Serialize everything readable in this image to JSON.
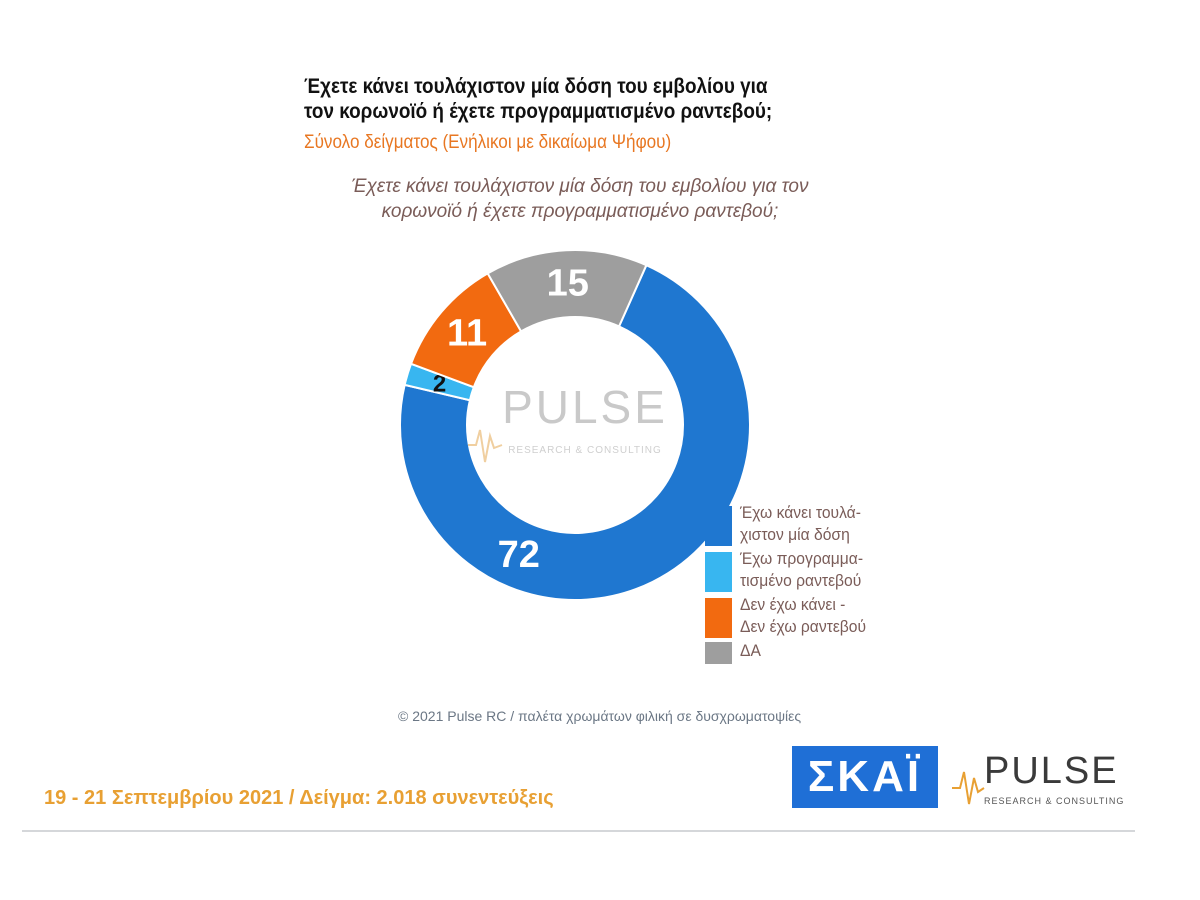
{
  "header": {
    "title_lines": [
      "Έχετε κάνει τουλάχιστον μία δόση του εμβολίου για",
      "τον κορωνοϊό ή έχετε προγραμματισμένο ραντεβού;"
    ],
    "subtitle": "Σύνολο δείγματος (Ενήλικοι με δικαίωμα Ψήφου)"
  },
  "chart_data": {
    "type": "pie",
    "variant": "donut",
    "title_lines": [
      "Έχετε κάνει τουλάχιστον μία δόση του εμβολίου για τον",
      "κορωνοϊό ή έχετε προγραμματισμένο ραντεβού;"
    ],
    "slices": [
      {
        "label": "Έχω κάνει τουλά-\nχιστον μία δόση",
        "value": 72,
        "color": "#1f77d0",
        "label_color": "#ffffff"
      },
      {
        "label": "Έχω προγραμμα-\nτισμένο ραντεβού",
        "value": 2,
        "color": "#38b6f0",
        "label_color": "#111111"
      },
      {
        "label": "Δεν έχω κάνει -\nΔεν έχω ραντεβού",
        "value": 11,
        "color": "#f26a10",
        "label_color": "#ffffff"
      },
      {
        "label": "ΔΑ",
        "value": 15,
        "color": "#9e9e9e",
        "label_color": "#ffffff"
      }
    ],
    "watermark": {
      "word": "PULSE",
      "sub": "RESEARCH & CONSULTING"
    },
    "legend_position": "bottom-right"
  },
  "footer": {
    "credit": "© 2021 Pulse RC  /  παλέτα χρωμάτων φιλική σε δυσχρωματοψίες",
    "date_sample": "19 - 21 Σεπτεμβρίου 2021  /  Δείγμα:  2.018 συνεντεύξεις"
  },
  "logos": {
    "skai": "ΣΚΑΪ",
    "pulse": {
      "word": "PULSE",
      "sub": "RESEARCH & CONSULTING"
    }
  }
}
